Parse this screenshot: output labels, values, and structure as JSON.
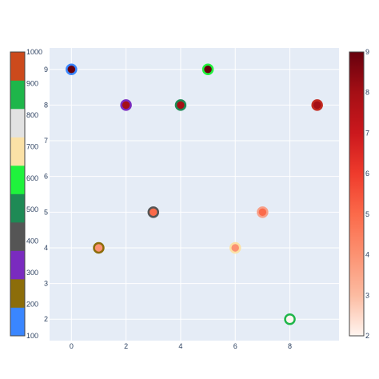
{
  "chart_data": {
    "type": "scatter",
    "title": "",
    "xlabel": "",
    "ylabel": "",
    "xlim": [
      -0.8,
      9.8
    ],
    "ylim": [
      1.4,
      9.6
    ],
    "x_ticks": [
      0,
      2,
      4,
      6,
      8
    ],
    "y_ticks": [
      2,
      3,
      4,
      5,
      6,
      7,
      8,
      9
    ],
    "grid": true,
    "plot_background": "#e5ecf6",
    "points": [
      {
        "x": 0,
        "y": 9,
        "fill_value": 9,
        "ring_color": "#3a86ff"
      },
      {
        "x": 1,
        "y": 4,
        "fill_value": 4,
        "ring_color": "#8c6d0a"
      },
      {
        "x": 2,
        "y": 8,
        "fill_value": 8,
        "ring_color": "#7a2bbf"
      },
      {
        "x": 3,
        "y": 5,
        "fill_value": 5,
        "ring_color": "#555555"
      },
      {
        "x": 4,
        "y": 8,
        "fill_value": 8,
        "ring_color": "#1e8a55"
      },
      {
        "x": 5,
        "y": 9,
        "fill_value": 9,
        "ring_color": "#1ff23c"
      },
      {
        "x": 6,
        "y": 4,
        "fill_value": 4,
        "ring_color": "#fbe1a6"
      },
      {
        "x": 7,
        "y": 5,
        "fill_value": 5,
        "ring_color": "#f7a18a"
      },
      {
        "x": 8,
        "y": 2,
        "fill_value": 2,
        "ring_color": "#1eb64a"
      },
      {
        "x": 9,
        "y": 8,
        "fill_value": 8,
        "ring_color": "#c22a20"
      }
    ],
    "colorbar_left": {
      "range": [
        100,
        1000
      ],
      "tick_labels": [
        "100",
        "200",
        "300",
        "400",
        "500",
        "600",
        "700",
        "800",
        "900",
        "1000"
      ],
      "bands": [
        "#3a86ff",
        "#8c6d0a",
        "#7a2bbf",
        "#555555",
        "#1e8a55",
        "#1ff23c",
        "#fbe1a6",
        "#e2e2e2",
        "#1eb64a",
        "#cc4a1c"
      ]
    },
    "colorbar_right": {
      "range": [
        2,
        9
      ],
      "tick_labels": [
        "2",
        "3",
        "4",
        "5",
        "6",
        "7",
        "8",
        "9"
      ],
      "colorscale": [
        "#fff5f0",
        "#fcbba1",
        "#fc9272",
        "#fb6a4a",
        "#ef3b2c",
        "#cb181d",
        "#a50f15",
        "#67000d"
      ]
    }
  }
}
